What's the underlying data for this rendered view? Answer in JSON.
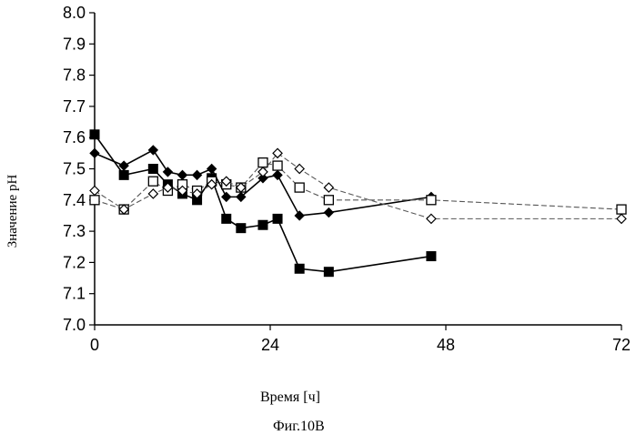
{
  "chart_data": {
    "type": "line",
    "title": "",
    "xlabel": "Время [ч]",
    "ylabel": "Значение pH",
    "figure_caption": "Фиг.10В",
    "xlim": [
      0,
      72
    ],
    "ylim": [
      7.0,
      8.0
    ],
    "x_ticks": [
      "0",
      "24",
      "48",
      "72"
    ],
    "y_ticks": [
      "7.0",
      "7.1",
      "7.2",
      "7.3",
      "7.4",
      "7.5",
      "7.6",
      "7.7",
      "7.8",
      "7.9",
      "8.0"
    ],
    "grid": false,
    "legend": "none",
    "series": [
      {
        "marker": "filled-square",
        "line_style": "solid",
        "color": "#000000",
        "points": [
          [
            0,
            7.61
          ],
          [
            4,
            7.48
          ],
          [
            8,
            7.5
          ],
          [
            10,
            7.45
          ],
          [
            12,
            7.42
          ],
          [
            14,
            7.4
          ],
          [
            16,
            7.47
          ],
          [
            18,
            7.34
          ],
          [
            20,
            7.31
          ],
          [
            23,
            7.32
          ],
          [
            25,
            7.34
          ],
          [
            28,
            7.18
          ],
          [
            32,
            7.17
          ],
          [
            46,
            7.22
          ]
        ]
      },
      {
        "marker": "filled-diamond",
        "line_style": "solid",
        "color": "#000000",
        "points": [
          [
            0,
            7.55
          ],
          [
            4,
            7.51
          ],
          [
            8,
            7.56
          ],
          [
            10,
            7.49
          ],
          [
            12,
            7.48
          ],
          [
            14,
            7.48
          ],
          [
            16,
            7.5
          ],
          [
            18,
            7.41
          ],
          [
            20,
            7.41
          ],
          [
            23,
            7.47
          ],
          [
            25,
            7.48
          ],
          [
            28,
            7.35
          ],
          [
            32,
            7.36
          ],
          [
            46,
            7.41
          ]
        ]
      },
      {
        "marker": "open-square",
        "line_style": "dashed",
        "color": "#555555",
        "points": [
          [
            0,
            7.4
          ],
          [
            4,
            7.37
          ],
          [
            8,
            7.46
          ],
          [
            10,
            7.43
          ],
          [
            12,
            7.45
          ],
          [
            14,
            7.43
          ],
          [
            16,
            7.46
          ],
          [
            18,
            7.45
          ],
          [
            20,
            7.44
          ],
          [
            23,
            7.52
          ],
          [
            25,
            7.51
          ],
          [
            28,
            7.44
          ],
          [
            32,
            7.4
          ],
          [
            46,
            7.4
          ],
          [
            72,
            7.37
          ]
        ]
      },
      {
        "marker": "open-diamond",
        "line_style": "dashed",
        "color": "#555555",
        "points": [
          [
            0,
            7.43
          ],
          [
            4,
            7.37
          ],
          [
            8,
            7.42
          ],
          [
            10,
            7.44
          ],
          [
            12,
            7.43
          ],
          [
            14,
            7.42
          ],
          [
            16,
            7.45
          ],
          [
            18,
            7.46
          ],
          [
            20,
            7.44
          ],
          [
            23,
            7.49
          ],
          [
            25,
            7.55
          ],
          [
            28,
            7.5
          ],
          [
            32,
            7.44
          ],
          [
            46,
            7.34
          ],
          [
            72,
            7.34
          ]
        ]
      }
    ]
  }
}
